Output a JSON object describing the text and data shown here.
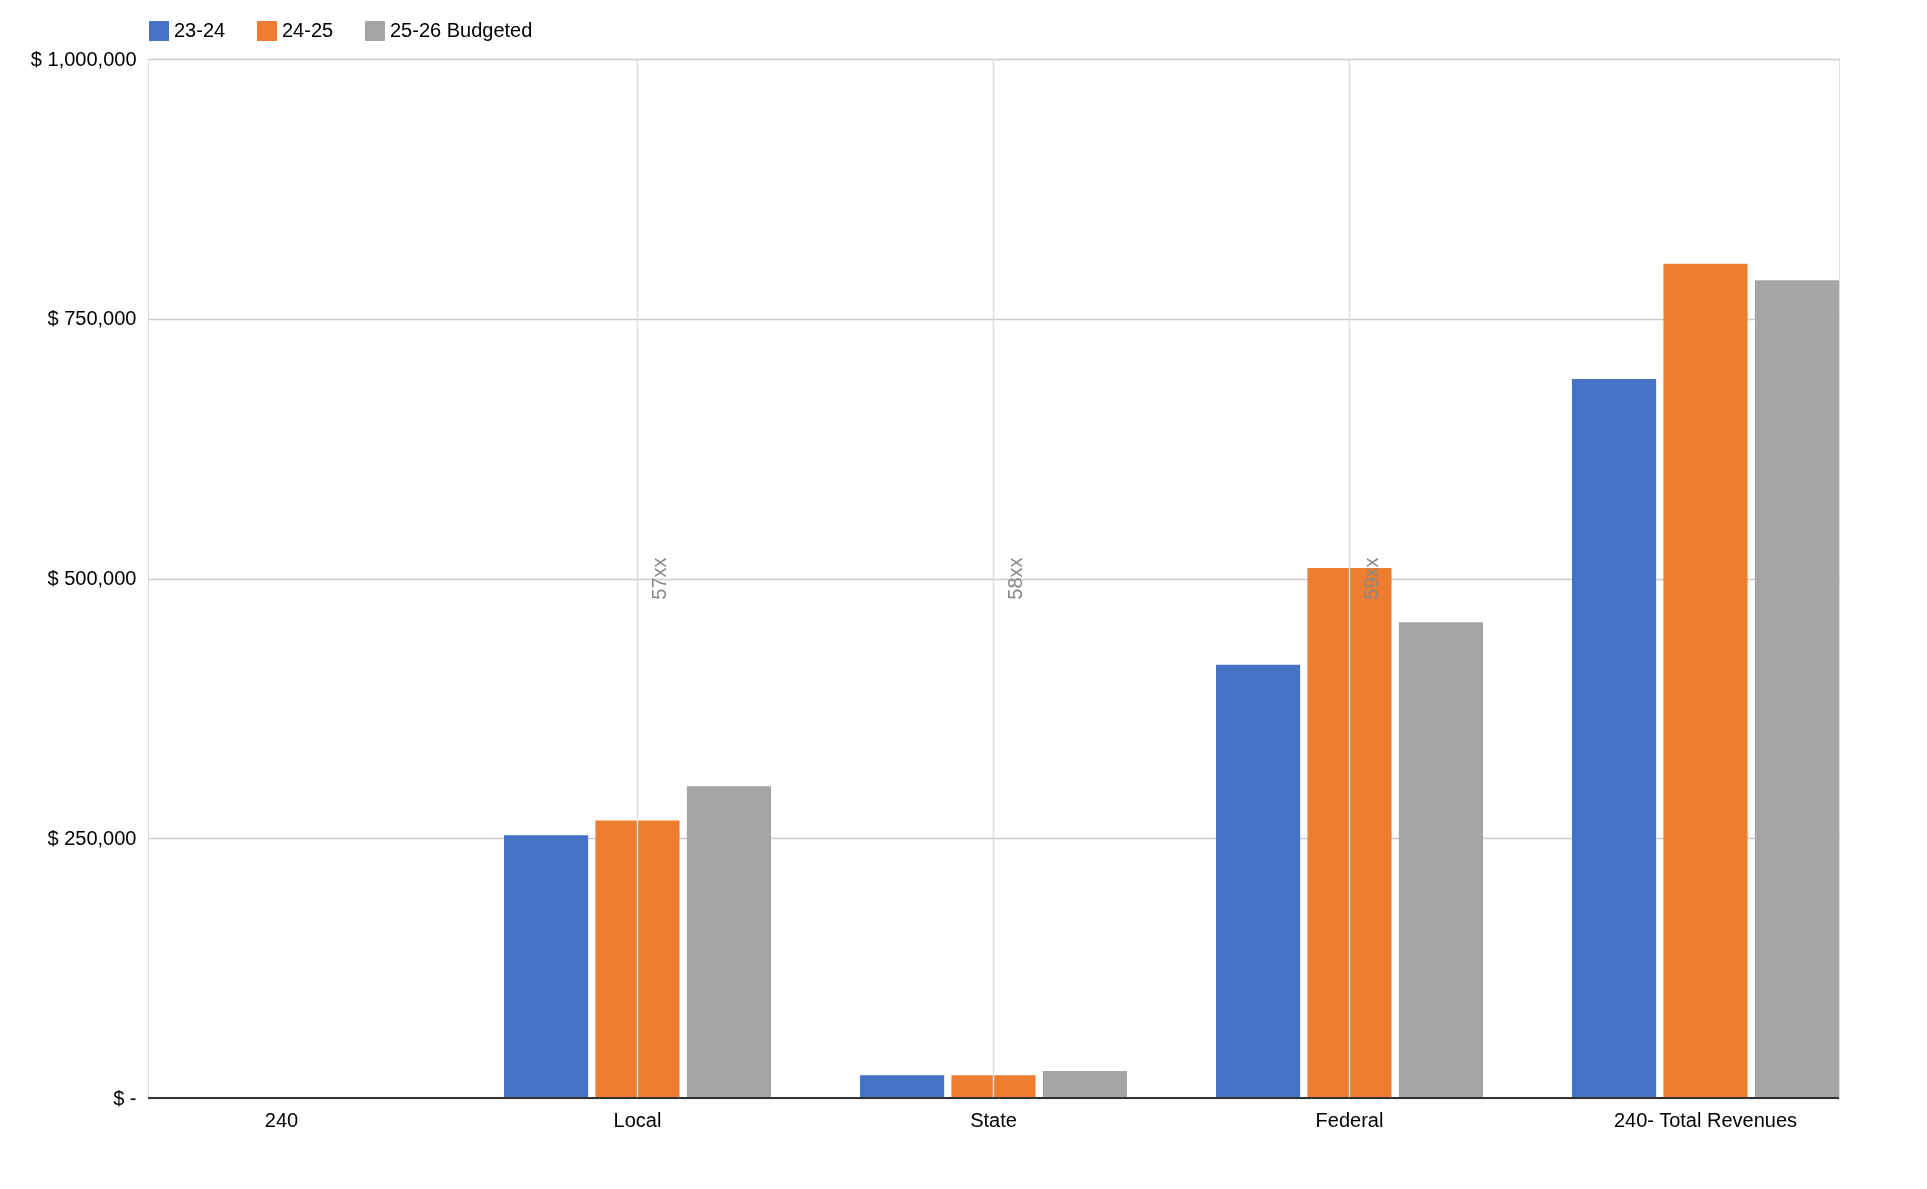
{
  "chart_data": {
    "type": "bar",
    "categories": [
      "240",
      "Local",
      "State",
      "Federal",
      "240- Total Revenues"
    ],
    "series": [
      {
        "name": "23-24",
        "color": "#4472c4",
        "values": [
          null,
          253000,
          22000,
          417000,
          692000
        ]
      },
      {
        "name": "24-25",
        "color": "#ed7d31",
        "values": [
          null,
          267000,
          22000,
          510000,
          803000
        ]
      },
      {
        "name": "25-26 Budgeted",
        "color": "#a5a5a5",
        "values": [
          null,
          300000,
          26000,
          458000,
          787000
        ]
      }
    ],
    "ylim": [
      0,
      1000000
    ],
    "yticks": [
      {
        "value": 0,
        "label": "$ -"
      },
      {
        "value": 250000,
        "label": "$ 250,000"
      },
      {
        "value": 500000,
        "label": "$ 500,000"
      },
      {
        "value": 750000,
        "label": "$ 750,000"
      },
      {
        "value": 1000000,
        "label": "$ 1,000,000"
      }
    ],
    "ref_lines": [
      {
        "axis": "x",
        "value": "Local",
        "label": "57xx",
        "color": "#e0e0e0"
      },
      {
        "axis": "x",
        "value": "State",
        "label": "58xx",
        "color": "#e0e0e0"
      },
      {
        "axis": "x",
        "value": "Federal",
        "label": "59xx",
        "color": "#e0e0e0"
      }
    ],
    "grid": "y",
    "legend": "top"
  }
}
